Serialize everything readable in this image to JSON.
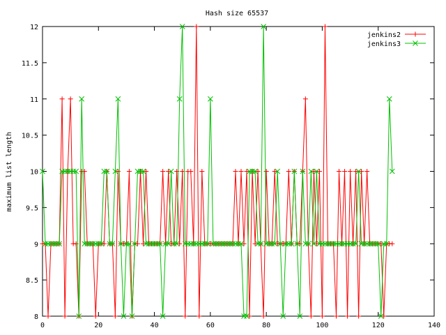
{
  "chart_data": {
    "type": "line",
    "title": "Hash size 65537",
    "xlabel": "",
    "ylabel": "maximum list length",
    "xlim": [
      0,
      140
    ],
    "ylim": [
      8,
      12
    ],
    "x_ticks": [
      "0",
      "20",
      "40",
      "60",
      "80",
      "100",
      "120",
      "140"
    ],
    "y_ticks": [
      "8",
      "8.5",
      "9",
      "9.5",
      "10",
      "10.5",
      "11",
      "11.5",
      "12"
    ],
    "grid": false,
    "legend_position": "top-right",
    "series": [
      {
        "name": "jenkins2",
        "color": "#ff0000",
        "marker": "plus",
        "x": [
          0,
          1,
          2,
          3,
          4,
          5,
          6,
          7,
          8,
          9,
          10,
          11,
          12,
          13,
          14,
          15,
          16,
          17,
          18,
          19,
          20,
          21,
          22,
          23,
          24,
          25,
          26,
          27,
          28,
          29,
          30,
          31,
          32,
          33,
          34,
          35,
          36,
          37,
          38,
          39,
          40,
          41,
          42,
          43,
          44,
          45,
          46,
          47,
          48,
          49,
          50,
          51,
          52,
          53,
          54,
          55,
          56,
          57,
          58,
          59,
          60,
          61,
          62,
          63,
          64,
          65,
          66,
          67,
          68,
          69,
          70,
          71,
          72,
          73,
          74,
          75,
          76,
          77,
          78,
          79,
          80,
          81,
          82,
          83,
          84,
          85,
          86,
          87,
          88,
          89,
          90,
          91,
          92,
          93,
          94,
          95,
          96,
          97,
          98,
          99,
          100,
          101,
          102,
          103,
          104,
          105,
          106,
          107,
          108,
          109,
          110,
          111,
          112,
          113,
          114,
          115,
          116,
          117,
          118,
          119,
          120,
          121,
          122,
          123,
          124,
          125
        ],
        "values": [
          9,
          9,
          8,
          9,
          9,
          9,
          9,
          11,
          8,
          10,
          11,
          9,
          9,
          8,
          10,
          10,
          9,
          9,
          9,
          8,
          9,
          9,
          9,
          10,
          9,
          9,
          8,
          10,
          9,
          9,
          9,
          10,
          8,
          9,
          9,
          10,
          9,
          10,
          9,
          9,
          9,
          9,
          9,
          10,
          9,
          10,
          9,
          9,
          10,
          9,
          10,
          8,
          10,
          10,
          9,
          12,
          8,
          10,
          9,
          9,
          9,
          9,
          9,
          9,
          9,
          9,
          9,
          9,
          9,
          10,
          9,
          10,
          9,
          10,
          8,
          10,
          9,
          10,
          9,
          8,
          10,
          9,
          9,
          10,
          9,
          9,
          9,
          9,
          10,
          9,
          10,
          9,
          9,
          10,
          11,
          9,
          8,
          10,
          9,
          10,
          8,
          12,
          9,
          9,
          9,
          8,
          10,
          9,
          10,
          8,
          10,
          9,
          10,
          8,
          10,
          9,
          10,
          9,
          9,
          9,
          9,
          9,
          8,
          9,
          9,
          9
        ]
      },
      {
        "name": "jenkins3",
        "color": "#00c000",
        "marker": "cross",
        "x": [
          0,
          1,
          2,
          3,
          4,
          5,
          6,
          7,
          8,
          9,
          10,
          11,
          12,
          13,
          14,
          15,
          16,
          17,
          18,
          19,
          20,
          21,
          22,
          23,
          24,
          25,
          26,
          27,
          28,
          29,
          30,
          31,
          32,
          33,
          34,
          35,
          36,
          37,
          38,
          39,
          40,
          41,
          42,
          43,
          44,
          45,
          46,
          47,
          48,
          49,
          50,
          51,
          52,
          53,
          54,
          55,
          56,
          57,
          58,
          59,
          60,
          61,
          62,
          63,
          64,
          65,
          66,
          67,
          68,
          69,
          70,
          71,
          72,
          73,
          74,
          75,
          76,
          77,
          78,
          79,
          80,
          81,
          82,
          83,
          84,
          85,
          86,
          87,
          88,
          89,
          90,
          91,
          92,
          93,
          94,
          95,
          96,
          97,
          98,
          99,
          100,
          101,
          102,
          103,
          104,
          105,
          106,
          107,
          108,
          109,
          110,
          111,
          112,
          113,
          114,
          115,
          116,
          117,
          118,
          119,
          120,
          121,
          122,
          123,
          124,
          125
        ],
        "values": [
          10,
          9,
          9,
          9,
          9,
          9,
          9,
          10,
          10,
          10,
          10,
          10,
          10,
          8,
          11,
          9,
          9,
          9,
          9,
          9,
          9,
          9,
          10,
          10,
          9,
          9,
          10,
          11,
          9,
          8,
          9,
          9,
          8,
          9,
          10,
          10,
          10,
          9,
          9,
          9,
          9,
          9,
          9,
          8,
          9,
          9,
          10,
          9,
          9,
          11,
          12,
          9,
          9,
          9,
          9,
          9,
          9,
          9,
          9,
          9,
          11,
          9,
          9,
          9,
          9,
          9,
          9,
          9,
          9,
          9,
          9,
          9,
          8,
          8,
          10,
          10,
          10,
          9,
          9,
          12,
          9,
          9,
          9,
          9,
          10,
          9,
          8,
          9,
          9,
          9,
          10,
          9,
          8,
          10,
          9,
          9,
          10,
          9,
          10,
          9,
          9,
          9,
          9,
          9,
          9,
          9,
          9,
          9,
          9,
          9,
          9,
          9,
          9,
          10,
          9,
          9,
          9,
          9,
          9,
          9,
          9,
          8,
          9,
          9,
          11,
          10
        ]
      }
    ]
  }
}
